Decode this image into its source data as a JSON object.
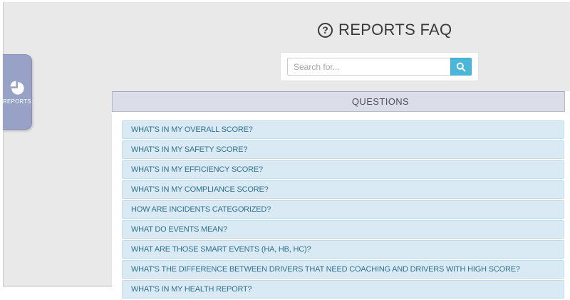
{
  "page": {
    "title": "REPORTS FAQ"
  },
  "sidebar_tab": {
    "label": "REPORTS",
    "icon": "pie-chart-icon",
    "bg_color": "#98a1c6"
  },
  "search": {
    "value": "",
    "placeholder": "Search for...",
    "button_icon": "magnifier-icon",
    "button_color": "#4cb6d8"
  },
  "questions_panel": {
    "header": "QUESTIONS",
    "items": [
      "WHAT'S IN MY OVERALL SCORE?",
      "WHAT'S IN MY SAFETY SCORE?",
      "WHAT'S IN MY EFFICIENCY SCORE?",
      "WHAT'S IN MY COMPLIANCE SCORE?",
      "HOW ARE INCIDENTS CATEGORIZED?",
      "WHAT DO EVENTS MEAN?",
      "WHAT ARE THOSE SMART EVENTS (HA, HB, HC)?",
      "WHAT'S THE DIFFERENCE BETWEEN DRIVERS THAT NEED COACHING AND DRIVERS WITH HIGH SCORE?",
      "WHAT'S IN MY HEALTH REPORT?"
    ],
    "colors": {
      "row_bg": "#d9eaf4",
      "row_border": "#c3ddeb",
      "row_text": "#31708f",
      "header_bg": "#dbdde9",
      "header_text": "#50515d",
      "page_bg": "#e9e9e9"
    }
  }
}
